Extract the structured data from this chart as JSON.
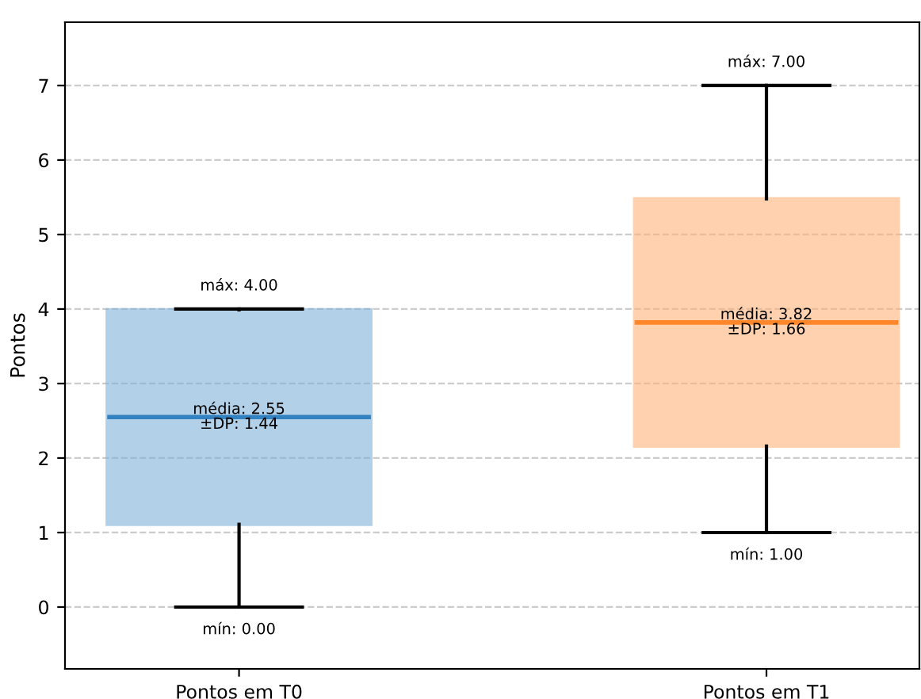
{
  "chart_data": {
    "type": "box",
    "ylabel": "Pontos",
    "categories": [
      "Pontos em T0",
      "Pontos em T1"
    ],
    "boxes": [
      {
        "low": 0.0,
        "q1": 1.11,
        "median": 2.55,
        "q3": 3.99,
        "high": 4.0
      },
      {
        "low": 1.0,
        "q1": 2.16,
        "median": 3.82,
        "q3": 5.48,
        "high": 7.0
      }
    ],
    "colors": [
      "#7fb1d8",
      "#ffb47a"
    ],
    "ylim": [
      -0.83,
      7.85
    ],
    "yticks": [
      0,
      1,
      2,
      3,
      4,
      5,
      6,
      7
    ],
    "grid": "y",
    "annotations": [
      {
        "text": "máx: 4.00",
        "x": "Pontos em T0",
        "y": 4.0
      },
      {
        "text": "média: 2.55\n±DP: 1.44",
        "x": "Pontos em T0",
        "y": 2.55
      },
      {
        "text": "mín: 0.00",
        "x": "Pontos em T0",
        "y": 0.0
      },
      {
        "text": "máx: 7.00",
        "x": "Pontos em T1",
        "y": 7.0
      },
      {
        "text": "média: 3.82\n±DP: 1.66",
        "x": "Pontos em T1",
        "y": 3.82
      },
      {
        "text": "mín: 1.00",
        "x": "Pontos em T1",
        "y": 1.0
      }
    ]
  }
}
